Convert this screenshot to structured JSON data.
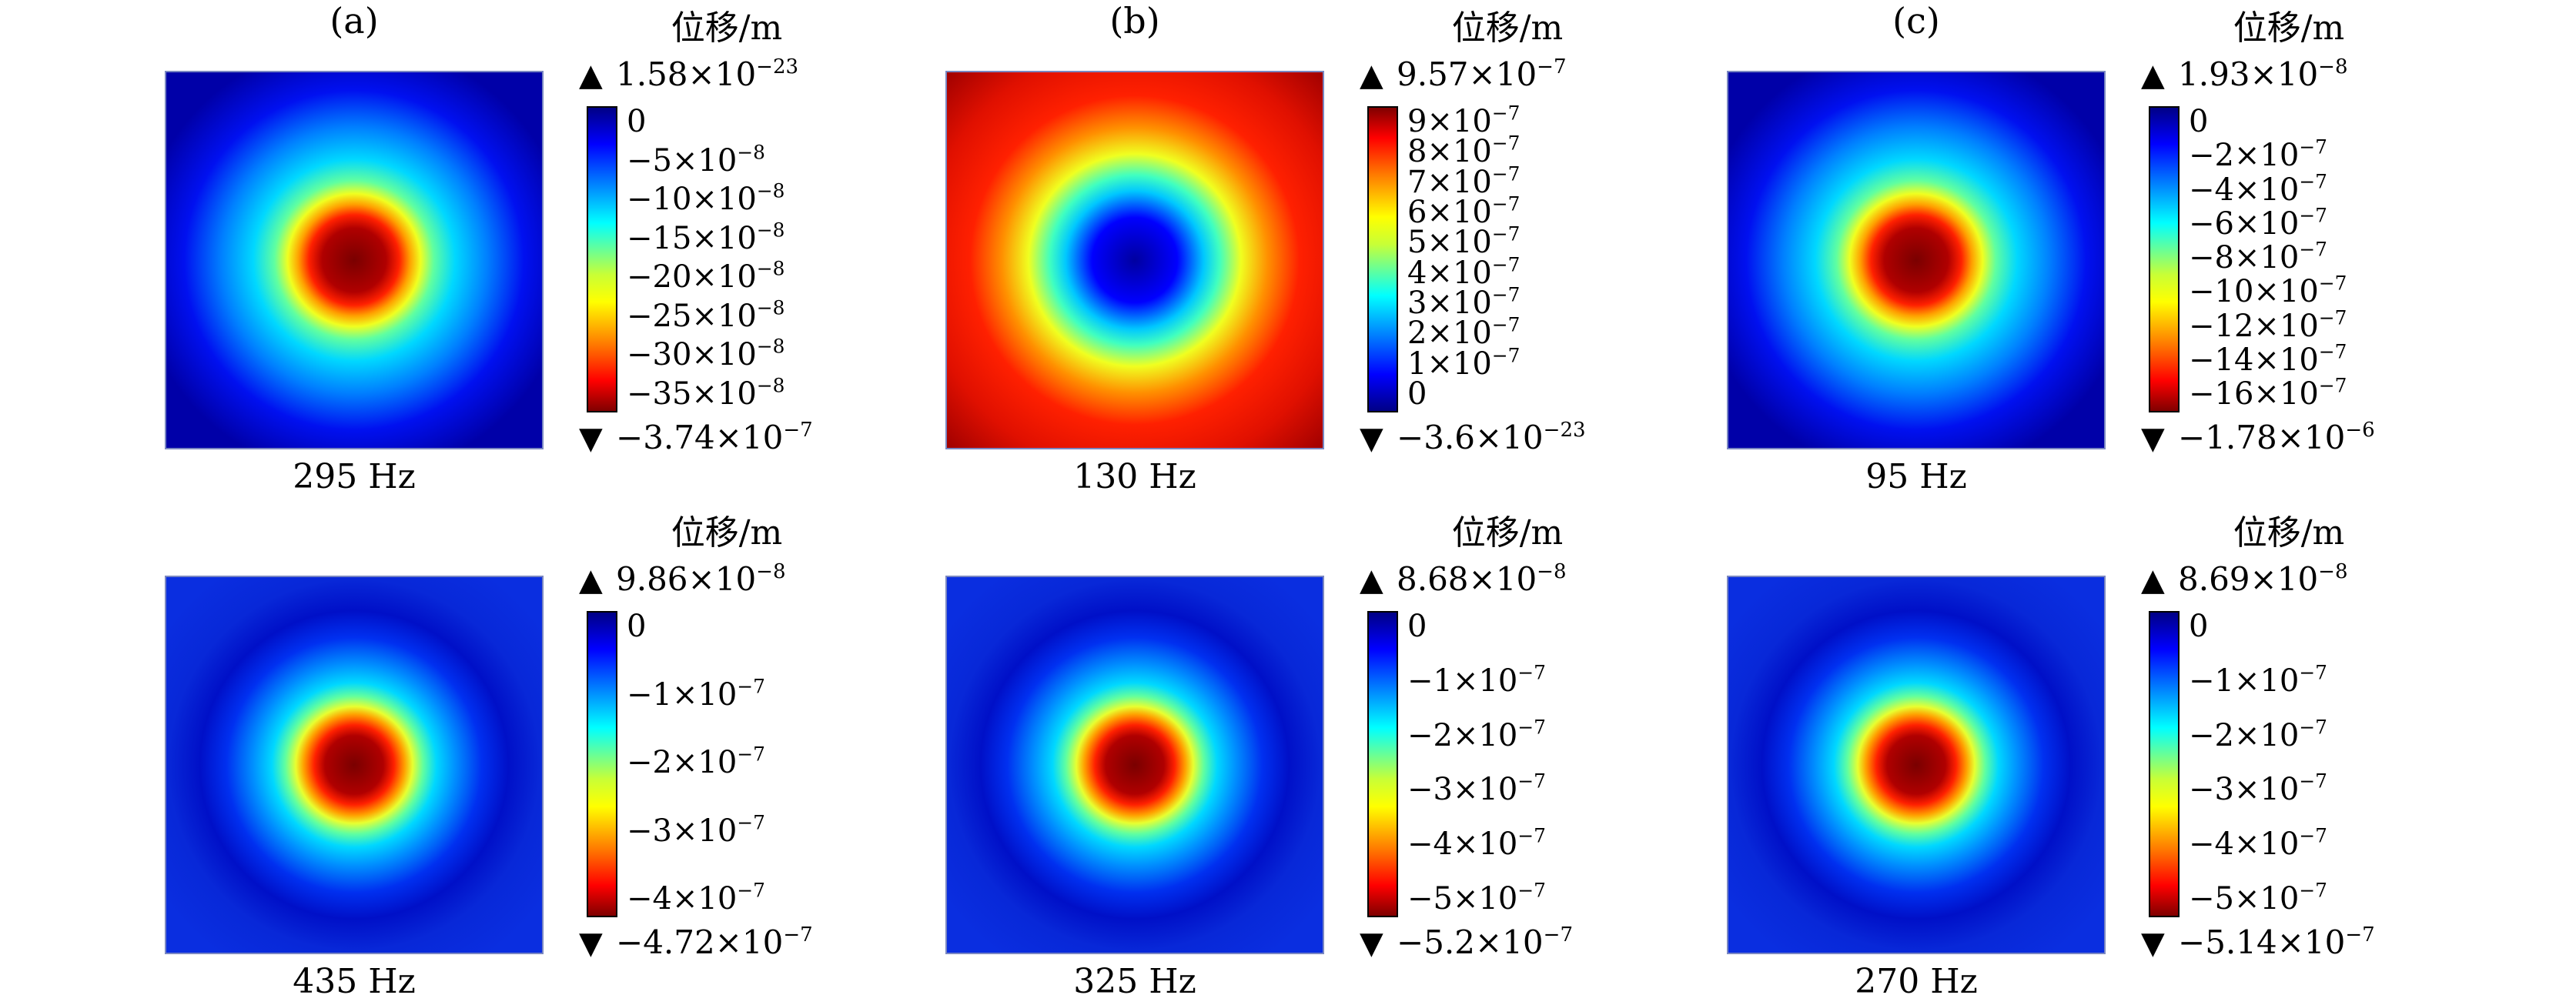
{
  "figure": {
    "panels": [
      {
        "label": "(a)",
        "unit": "位移/m",
        "freq": "295 Hz",
        "max": {
          "m": "1.58",
          "e": "−23"
        },
        "min": {
          "m": "−3.74",
          "e": "−7"
        },
        "ticks": [
          {
            "m": "0",
            "e": ""
          },
          {
            "m": "−5",
            "e": "−8"
          },
          {
            "m": "−10",
            "e": "−8"
          },
          {
            "m": "−15",
            "e": "−8"
          },
          {
            "m": "−20",
            "e": "−8"
          },
          {
            "m": "−25",
            "e": "−8"
          },
          {
            "m": "−30",
            "e": "−8"
          },
          {
            "m": "−35",
            "e": "−8"
          }
        ],
        "plate": {
          "center": "#7a0000",
          "background": "#0000a8",
          "pattern": "dip"
        }
      },
      {
        "label": "(b)",
        "unit": "位移/m",
        "freq": "130 Hz",
        "max": {
          "m": "9.57",
          "e": "−7"
        },
        "min": {
          "m": "−3.6",
          "e": "−23"
        },
        "ticks": [
          {
            "m": "9",
            "e": "−7"
          },
          {
            "m": "8",
            "e": "−7"
          },
          {
            "m": "7",
            "e": "−7"
          },
          {
            "m": "6",
            "e": "−7"
          },
          {
            "m": "5",
            "e": "−7"
          },
          {
            "m": "4",
            "e": "−7"
          },
          {
            "m": "3",
            "e": "−7"
          },
          {
            "m": "2",
            "e": "−7"
          },
          {
            "m": "1",
            "e": "−7"
          },
          {
            "m": "0",
            "e": ""
          }
        ],
        "plate": {
          "center": "#0000a0",
          "background": "#e01000",
          "pattern": "peak"
        }
      },
      {
        "label": "(c)",
        "unit": "位移/m",
        "freq": "95 Hz",
        "max": {
          "m": "1.93",
          "e": "−8"
        },
        "min": {
          "m": "−1.78",
          "e": "−6"
        },
        "ticks": [
          {
            "m": "0",
            "e": ""
          },
          {
            "m": "−2",
            "e": "−7"
          },
          {
            "m": "−4",
            "e": "−7"
          },
          {
            "m": "−6",
            "e": "−7"
          },
          {
            "m": "−8",
            "e": "−7"
          },
          {
            "m": "−10",
            "e": "−7"
          },
          {
            "m": "−12",
            "e": "−7"
          },
          {
            "m": "−14",
            "e": "−7"
          },
          {
            "m": "−16",
            "e": "−7"
          }
        ],
        "plate": {
          "center": "#7a0000",
          "background": "#0000a8",
          "pattern": "dip"
        }
      },
      {
        "label": "",
        "unit": "位移/m",
        "freq": "435 Hz",
        "max": {
          "m": "9.86",
          "e": "−8"
        },
        "min": {
          "m": "−4.72",
          "e": "−7"
        },
        "ticks": [
          {
            "m": "0",
            "e": ""
          },
          {
            "m": "−1",
            "e": "−7"
          },
          {
            "m": "−2",
            "e": "−7"
          },
          {
            "m": "−3",
            "e": "−7"
          },
          {
            "m": "−4",
            "e": "−7"
          }
        ],
        "plate": {
          "center": "#7a0000",
          "background": "#0a2ee0",
          "pattern": "dip"
        }
      },
      {
        "label": "",
        "unit": "位移/m",
        "freq": "325 Hz",
        "max": {
          "m": "8.68",
          "e": "−8"
        },
        "min": {
          "m": "−5.2",
          "e": "−7"
        },
        "ticks": [
          {
            "m": "0",
            "e": ""
          },
          {
            "m": "−1",
            "e": "−7"
          },
          {
            "m": "−2",
            "e": "−7"
          },
          {
            "m": "−3",
            "e": "−7"
          },
          {
            "m": "−4",
            "e": "−7"
          },
          {
            "m": "−5",
            "e": "−7"
          }
        ],
        "plate": {
          "center": "#7a0000",
          "background": "#0a2ee0",
          "pattern": "dip"
        }
      },
      {
        "label": "",
        "unit": "位移/m",
        "freq": "270 Hz",
        "max": {
          "m": "8.69",
          "e": "−8"
        },
        "min": {
          "m": "−5.14",
          "e": "−7"
        },
        "ticks": [
          {
            "m": "0",
            "e": ""
          },
          {
            "m": "−1",
            "e": "−7"
          },
          {
            "m": "−2",
            "e": "−7"
          },
          {
            "m": "−3",
            "e": "−7"
          },
          {
            "m": "−4",
            "e": "−7"
          },
          {
            "m": "−5",
            "e": "−7"
          }
        ],
        "plate": {
          "center": "#7a0000",
          "background": "#0a2ee0",
          "pattern": "dip"
        }
      }
    ],
    "times_symbol": "×",
    "base": "10",
    "up_arrow": "▲",
    "down_arrow": "▼"
  }
}
